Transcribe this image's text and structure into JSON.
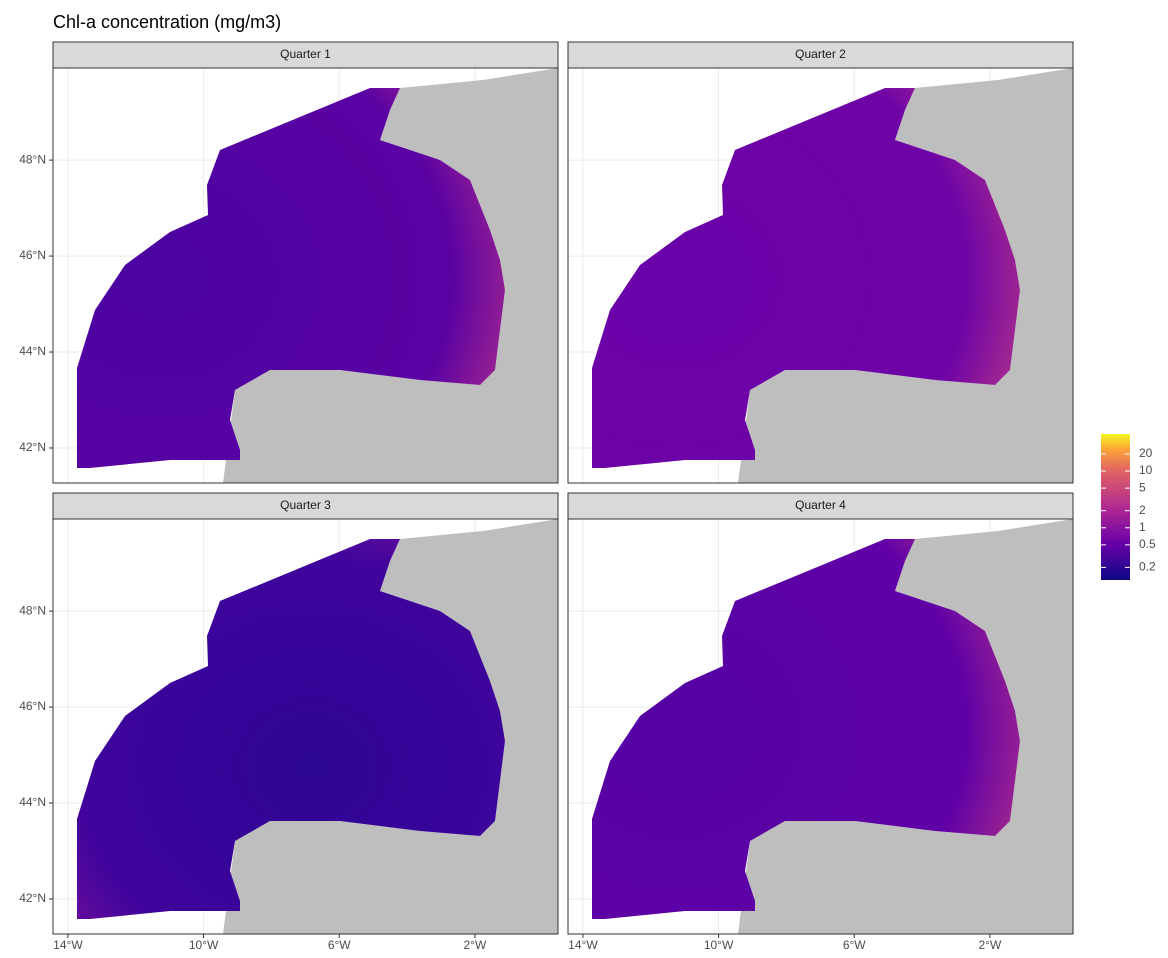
{
  "title": "Chl-a concentration (mg/m3)",
  "panels": [
    {
      "title": "Quarter 1"
    },
    {
      "title": "Quarter 2"
    },
    {
      "title": "Quarter 3"
    },
    {
      "title": "Quarter 4"
    }
  ],
  "xlim": [
    -14.44,
    0.45
  ],
  "ylim": [
    41.27,
    49.92
  ],
  "xticks": [
    {
      "value": -14,
      "label": "14°W"
    },
    {
      "value": -10,
      "label": "10°W"
    },
    {
      "value": -6,
      "label": "6°W"
    },
    {
      "value": -2,
      "label": "2°W"
    }
  ],
  "yticks": [
    {
      "value": 42,
      "label": "42°N"
    },
    {
      "value": 44,
      "label": "44°N"
    },
    {
      "value": 46,
      "label": "46°N"
    },
    {
      "value": 48,
      "label": "48°N"
    }
  ],
  "legend": {
    "scale": "log",
    "lim": [
      0.12,
      45
    ],
    "ticks": [
      0.2,
      0.5,
      1,
      2,
      5,
      10,
      20
    ]
  }
}
